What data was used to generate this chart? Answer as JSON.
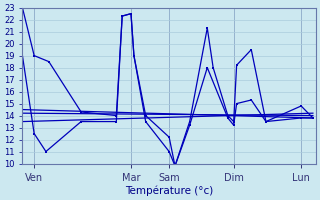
{
  "xlabel": "Température (°c)",
  "bg_color": "#cce8f0",
  "grid_color": "#aaccdd",
  "line_color": "#0000bb",
  "ylim": [
    10,
    23
  ],
  "yticks": [
    10,
    11,
    12,
    13,
    14,
    15,
    16,
    17,
    18,
    19,
    20,
    21,
    22,
    23
  ],
  "day_labels": [
    "Ven",
    "Mar",
    "Sam",
    "Dim",
    "Lun"
  ],
  "day_positions": [
    0.04,
    0.37,
    0.5,
    0.72,
    0.95
  ],
  "series1_x": [
    0.0,
    0.04,
    0.09,
    0.2,
    0.32,
    0.34,
    0.37,
    0.38,
    0.42,
    0.5,
    0.52,
    0.57,
    0.63,
    0.65,
    0.7,
    0.72,
    0.73,
    0.78,
    0.83,
    0.95,
    0.99
  ],
  "series1_y": [
    23.0,
    19.0,
    18.5,
    14.3,
    14.0,
    22.3,
    22.5,
    19.0,
    14.0,
    12.2,
    9.8,
    13.5,
    21.3,
    18.0,
    14.0,
    13.5,
    18.2,
    19.5,
    13.5,
    13.8,
    13.8
  ],
  "series2_x": [
    0.0,
    0.04,
    0.08,
    0.2,
    0.32,
    0.34,
    0.37,
    0.38,
    0.42,
    0.5,
    0.52,
    0.57,
    0.63,
    0.7,
    0.72,
    0.73,
    0.78,
    0.83,
    0.95,
    0.99
  ],
  "series2_y": [
    19.0,
    12.5,
    11.0,
    13.5,
    13.5,
    22.3,
    22.5,
    19.0,
    13.5,
    11.0,
    9.8,
    13.2,
    18.0,
    13.8,
    13.2,
    15.0,
    15.3,
    13.5,
    14.8,
    13.8
  ],
  "trend_lines": [
    {
      "x": [
        0.0,
        0.99
      ],
      "y": [
        14.5,
        13.8
      ]
    },
    {
      "x": [
        0.0,
        0.99
      ],
      "y": [
        14.2,
        14.0
      ]
    },
    {
      "x": [
        0.0,
        0.99
      ],
      "y": [
        13.5,
        14.2
      ]
    }
  ]
}
